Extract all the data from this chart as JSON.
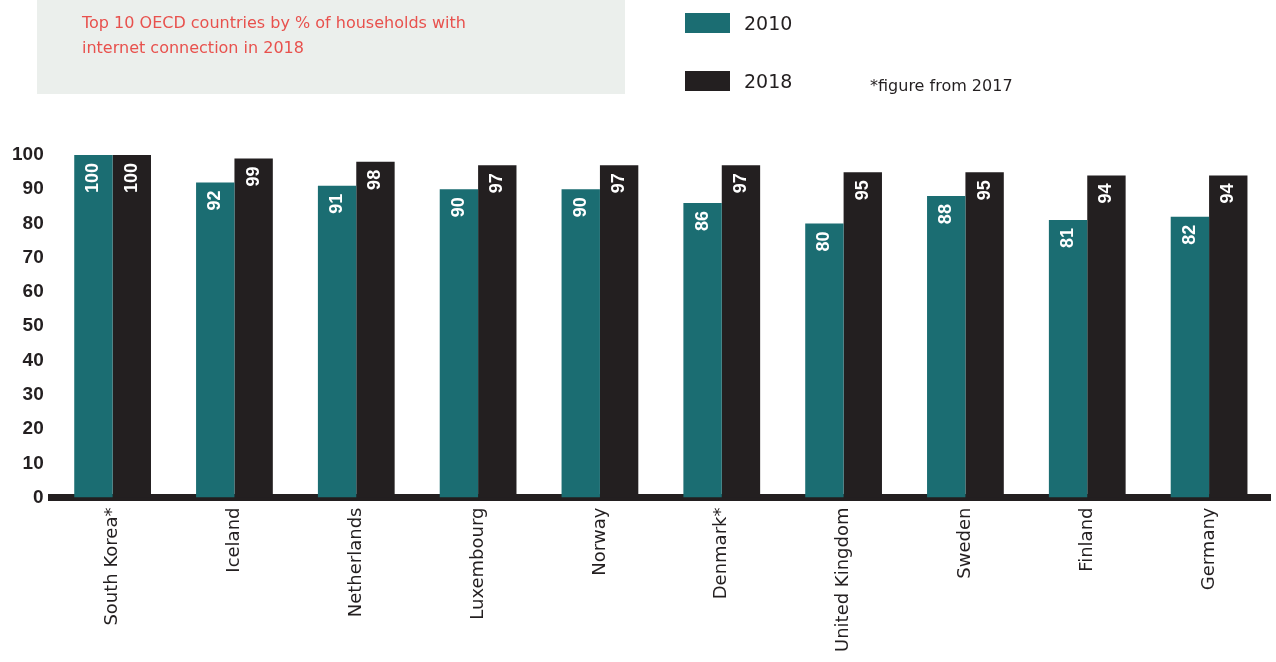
{
  "chart_data": {
    "type": "bar",
    "title": "Top 10 OECD countries by % of households with internet connection in 2018",
    "categories": [
      "South Korea*",
      "Iceland",
      "Netherlands",
      "Luxembourg",
      "Norway",
      "Denmark*",
      "United Kingdom",
      "Sweden",
      "Finland",
      "Germany"
    ],
    "series": [
      {
        "name": "2010",
        "color": "#1b6d72",
        "values": [
          100,
          92,
          91,
          90,
          90,
          86,
          80,
          88,
          81,
          82
        ]
      },
      {
        "name": "2018",
        "color": "#231f20",
        "values": [
          100,
          99,
          98,
          97,
          97,
          97,
          95,
          95,
          94,
          94
        ]
      }
    ],
    "ylim": [
      0,
      100
    ],
    "yticks": [
      0,
      10,
      20,
      30,
      40,
      50,
      60,
      70,
      80,
      90,
      100
    ],
    "data_labels": true,
    "grid": false,
    "legend": "top",
    "annotations": [
      "*figure from 2017"
    ]
  }
}
